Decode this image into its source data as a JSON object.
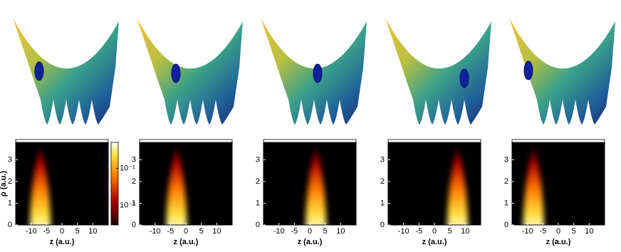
{
  "chart_data": [
    {
      "type": "heatmap",
      "xlabel": "z (a.u.)",
      "ylabel": "ρ (a.u.)",
      "xlim": [
        -15,
        15
      ],
      "ylim": [
        0,
        3.8
      ],
      "xticks": [
        -10,
        -5,
        0,
        5,
        10
      ],
      "yticks": [
        0,
        1,
        2,
        3
      ],
      "peak_z": -7,
      "colorbar": {
        "log": true,
        "lim": [
          0.003,
          0.5
        ],
        "ticks": [
          {
            "value": 0.1,
            "label": "10⁻¹"
          },
          {
            "value": 0.01,
            "label": "10⁻²"
          }
        ]
      }
    },
    {
      "type": "heatmap",
      "xlabel": "z (a.u.)",
      "xlim": [
        -15,
        15
      ],
      "ylim": [
        0,
        3.8
      ],
      "xticks": [
        -10,
        -5,
        0,
        5,
        10
      ],
      "yticks": [
        0,
        1,
        2,
        3
      ],
      "peak_z": -3
    },
    {
      "type": "heatmap",
      "xlabel": "z (a.u.)",
      "xlim": [
        -15,
        15
      ],
      "ylim": [
        0,
        3.8
      ],
      "xticks": [
        -10,
        -5,
        0,
        5,
        10
      ],
      "yticks": [
        0,
        1,
        2,
        3
      ],
      "peak_z": 2
    },
    {
      "type": "heatmap",
      "xlabel": "z (a.u.)",
      "xlim": [
        -15,
        15
      ],
      "ylim": [
        0,
        3.8
      ],
      "xticks": [
        -10,
        -5,
        0,
        5,
        10
      ],
      "yticks": [
        0,
        1,
        2,
        3
      ],
      "peak_z": 7.5
    },
    {
      "type": "heatmap",
      "xlabel": "z (a.u.)",
      "xlim": [
        -15,
        15
      ],
      "ylim": [
        0,
        3.8
      ],
      "xticks": [
        -10,
        -5,
        0,
        5,
        10
      ],
      "yticks": [
        0,
        1,
        2,
        3
      ],
      "peak_z": -8
    }
  ]
}
